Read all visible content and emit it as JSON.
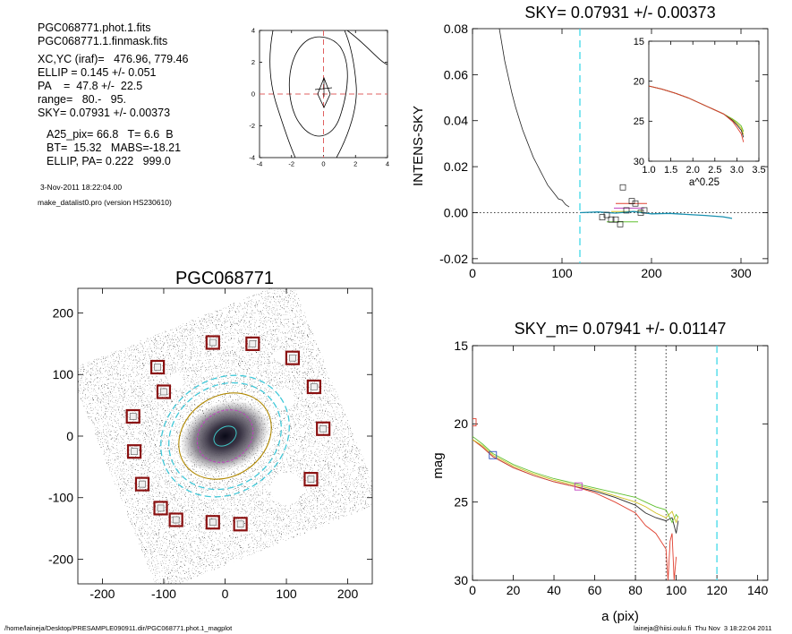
{
  "header": {
    "files": [
      "PGC068771.phot.1.fits",
      "PGC068771.1.finmask.fits"
    ],
    "params": [
      "XC,YC (iraf)=   476.96, 779.46",
      "ELLIP = 0.145 +/- 0.051",
      "PA    =  47.8 +/-  22.5",
      "range=   80.-   95.",
      "SKY= 0.07931 +/- 0.00373"
    ],
    "params2": [
      "A25_pix= 66.8   T= 6.6  B",
      "BT=  15.32   MABS=-18.21",
      "ELLIP, PA= 0.222   999.0"
    ],
    "date": "3-Nov-2011 18:22:04.00",
    "program": "make_datalist0.pro (version HS230610)"
  },
  "footer": {
    "path": "/home/laineja/Desktop/PRESAMPLE090911.dir/PGC068771.phot.1_magplot",
    "user": "laineja@hiisi.oulu.fi  Thu Nov  3 18:22:04 2011"
  },
  "chart_data": [
    {
      "type": "line",
      "id": "contour",
      "title": "",
      "xlim": [
        -4,
        4
      ],
      "ylim": [
        -4,
        4
      ],
      "xticks": [
        -4,
        -2,
        0,
        2,
        4
      ],
      "yticks": [
        -4,
        -2,
        0,
        2,
        4
      ]
    },
    {
      "type": "line",
      "id": "sky",
      "title": "SKY= 0.07931 +/- 0.00373",
      "ylabel": "INTENS-SKY",
      "xlim": [
        0,
        330
      ],
      "ylim": [
        -0.022,
        0.08
      ],
      "xticks": [
        0,
        100,
        200,
        300
      ],
      "yticks": [
        -0.02,
        0.0,
        0.02,
        0.04,
        0.06,
        0.08
      ],
      "ytick_labels": [
        "-0.02",
        "0.00",
        "0.02",
        "0.04",
        "0.06",
        "0.08"
      ],
      "sky_marker_x": 120,
      "profile": {
        "x": [
          30,
          33,
          36,
          40,
          44,
          48,
          52,
          56,
          60,
          64,
          68,
          72,
          76,
          80,
          84,
          88,
          92,
          96,
          100,
          104,
          108
        ],
        "y": [
          0.08,
          0.073,
          0.066,
          0.059,
          0.052,
          0.046,
          0.041,
          0.036,
          0.032,
          0.028,
          0.024,
          0.021,
          0.018,
          0.015,
          0.012,
          0.01,
          0.008,
          0.006,
          0.0055,
          0.0035,
          0.0025
        ]
      },
      "residual": {
        "x": [
          120,
          140,
          160,
          180,
          200,
          220,
          240,
          260,
          280,
          290
        ],
        "y": [
          0.0,
          0.0003,
          -0.0002,
          0.0005,
          -0.0005,
          -0.0003,
          -0.0008,
          -0.0012,
          -0.0018,
          -0.0025
        ]
      },
      "sky_points": {
        "x": [
          145,
          150,
          155,
          160,
          165,
          168,
          172,
          178,
          182,
          188,
          192
        ],
        "y": [
          -0.002,
          -0.001,
          -0.003,
          -0.003,
          -0.005,
          0.011,
          0.001,
          0.005,
          0.004,
          0.0,
          0.001
        ]
      },
      "inset": {
        "xlabel": "a^0.25",
        "xlim": [
          1.0,
          3.5
        ],
        "ylim": [
          15,
          30
        ],
        "xticks": [
          1.0,
          1.5,
          2.0,
          2.5,
          3.0,
          3.5
        ],
        "xtick_labels": [
          "1.0",
          "1.5",
          "2.0",
          "2.5",
          "3.0",
          "3.5"
        ],
        "yticks": [
          15,
          20,
          25,
          30
        ],
        "x": [
          1.0,
          1.3,
          1.6,
          1.9,
          2.1,
          2.3,
          2.5,
          2.7,
          2.9,
          3.0,
          3.1,
          3.15
        ],
        "y": [
          20.6,
          21.0,
          21.5,
          22.1,
          22.6,
          23.1,
          23.6,
          24.1,
          24.7,
          25.1,
          25.6,
          26.3
        ]
      }
    },
    {
      "type": "image",
      "id": "galaxy",
      "title": "PGC068771",
      "xlim": [
        -240,
        240
      ],
      "ylim": [
        -240,
        240
      ],
      "xticks": [
        -200,
        -100,
        0,
        100,
        200
      ],
      "yticks": [
        -200,
        -100,
        0,
        100,
        200
      ],
      "mask_boxes": [
        [
          -20,
          152
        ],
        [
          45,
          150
        ],
        [
          -110,
          112
        ],
        [
          -100,
          72
        ],
        [
          -150,
          32
        ],
        [
          -148,
          -25
        ],
        [
          -135,
          -78
        ],
        [
          -105,
          -117
        ],
        [
          -80,
          -136
        ],
        [
          -20,
          -140
        ],
        [
          25,
          -143
        ],
        [
          140,
          -70
        ],
        [
          160,
          12
        ],
        [
          145,
          80
        ],
        [
          110,
          127
        ]
      ]
    },
    {
      "type": "line",
      "id": "mag",
      "title": "SKY_m=  0.07941 +/- 0.01147",
      "xlabel": "a (pix)",
      "ylabel": "mag",
      "xlim": [
        0,
        145
      ],
      "ylim": [
        30,
        15
      ],
      "xticks": [
        0,
        20,
        40,
        60,
        80,
        100,
        120,
        140
      ],
      "yticks": [
        15,
        20,
        25,
        30
      ],
      "vlines_dotted": [
        80,
        95
      ],
      "vline_dashed": 120,
      "series": [
        {
          "color": "#2d2d2d",
          "x": [
            0,
            5,
            10,
            20,
            30,
            40,
            50,
            60,
            70,
            80,
            85,
            90,
            95,
            98,
            100,
            101
          ],
          "y": [
            21,
            21.5,
            22.1,
            22.8,
            23.3,
            23.7,
            24.0,
            24.3,
            24.7,
            25.2,
            25.7,
            26.0,
            26.2,
            26.0,
            27.0,
            26.2
          ]
        },
        {
          "color": "#e04030",
          "x": [
            0,
            5,
            10,
            20,
            30,
            40,
            50,
            60,
            70,
            80,
            85,
            90,
            95,
            96,
            97,
            98,
            99,
            100
          ],
          "y": [
            21,
            21.5,
            22.1,
            22.8,
            23.3,
            23.7,
            24.0,
            24.4,
            25.0,
            25.7,
            26.5,
            27.0,
            28.0,
            30,
            27.5,
            27.0,
            30,
            28.5
          ]
        },
        {
          "color": "#60c030",
          "x": [
            0,
            5,
            10,
            20,
            30,
            40,
            50,
            60,
            70,
            80,
            85,
            90,
            95,
            98,
            100,
            101
          ],
          "y": [
            20.8,
            21.3,
            21.9,
            22.6,
            23.1,
            23.5,
            23.8,
            24.1,
            24.4,
            24.7,
            25.0,
            25.3,
            25.5,
            26.3,
            25.8,
            26.0
          ]
        },
        {
          "color": "#d0c020",
          "x": [
            0,
            5,
            10,
            20,
            30,
            40,
            50,
            60,
            70,
            80,
            85,
            90,
            95,
            98,
            100,
            101
          ],
          "y": [
            21,
            21.4,
            22.0,
            22.7,
            23.2,
            23.6,
            23.9,
            24.2,
            24.6,
            25.0,
            25.3,
            25.7,
            26.0,
            25.6,
            26.3,
            25.9
          ]
        }
      ],
      "boxes": [
        {
          "x": 0,
          "y": 19.9,
          "color": "#e04030"
        },
        {
          "x": 10,
          "y": 22.0,
          "color": "#3050c0"
        },
        {
          "x": 52,
          "y": 24.0,
          "color": "#c040c0"
        }
      ]
    }
  ]
}
